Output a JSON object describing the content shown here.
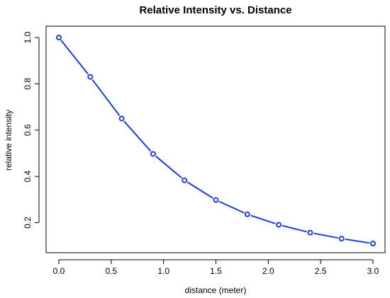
{
  "chart_data": {
    "type": "line",
    "title": "Relative Intensity vs. Distance",
    "xlabel": "distance (meter)",
    "ylabel": "relative intensity",
    "x": [
      0.0,
      0.3,
      0.6,
      0.9,
      1.2,
      1.5,
      1.8,
      2.1,
      2.4,
      2.7,
      3.0
    ],
    "series": [
      {
        "values": [
          1.0,
          0.83,
          0.65,
          0.497,
          0.383,
          0.298,
          0.236,
          0.191,
          0.157,
          0.131,
          0.11
        ]
      }
    ],
    "xlim": [
      0.0,
      3.0
    ],
    "ylim": [
      0.11,
      1.0
    ],
    "x_ticks": [
      "0.0",
      "0.5",
      "1.0",
      "1.5",
      "2.0",
      "2.5",
      "3.0"
    ],
    "y_ticks": [
      "0.2",
      "0.4",
      "0.6",
      "0.8",
      "1.0"
    ],
    "grid": false,
    "colors": {
      "series": "#1f3fd6",
      "axes": "#000000"
    },
    "marker": "open-circle"
  }
}
